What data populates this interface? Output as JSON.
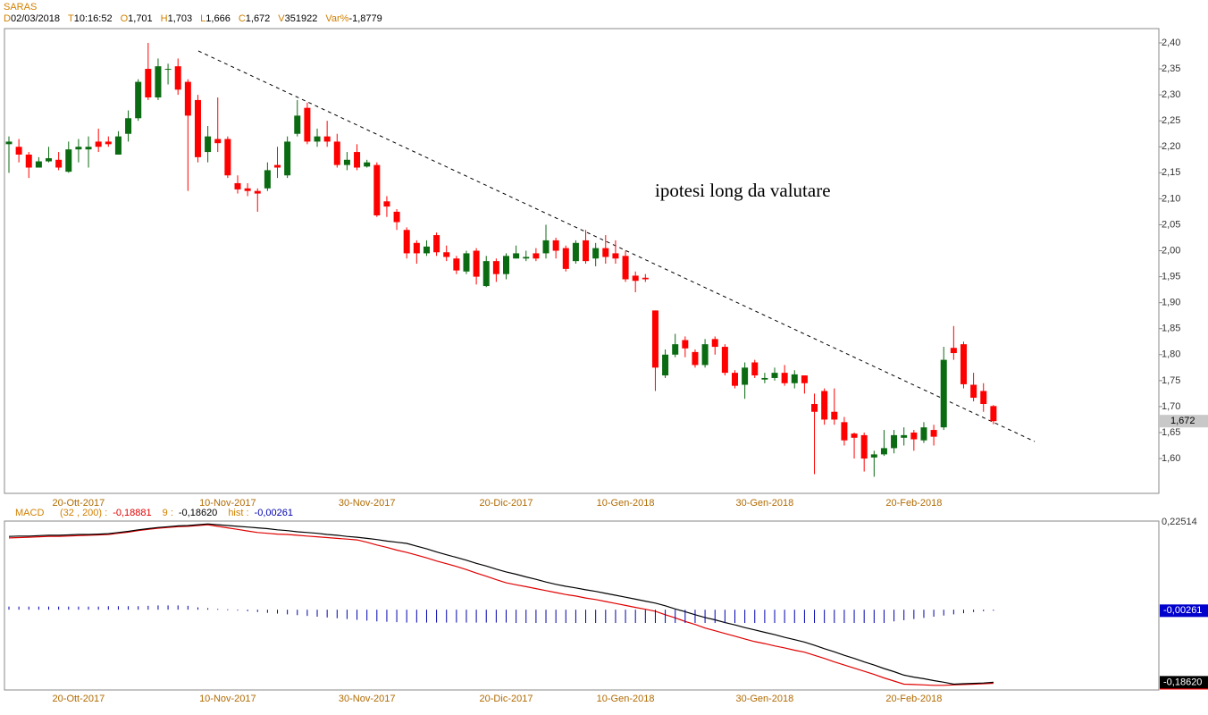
{
  "chart_data": [
    {
      "type": "candlestick",
      "title": "SARAS",
      "header": [
        {
          "label": "D",
          "value": "02/03/2018"
        },
        {
          "label": "T",
          "value": "10:16:52"
        },
        {
          "label": "O",
          "value": "1,701"
        },
        {
          "label": "H",
          "value": "1,703"
        },
        {
          "label": "L",
          "value": "1,666"
        },
        {
          "label": "C",
          "value": "1,672"
        },
        {
          "label": "V",
          "value": "351922"
        },
        {
          "label": "Var%",
          "value": "-1,8779"
        }
      ],
      "annotation": "ipotesi long da valutare",
      "categories": [
        null,
        null,
        null,
        null,
        null,
        null,
        null,
        "20-Ott-2017",
        null,
        null,
        null,
        null,
        null,
        null,
        null,
        null,
        null,
        null,
        null,
        null,
        null,
        null,
        "10-Nov-2017",
        null,
        null,
        null,
        null,
        null,
        null,
        null,
        null,
        null,
        null,
        null,
        null,
        null,
        "30-Nov-2017",
        null,
        null,
        null,
        null,
        null,
        null,
        null,
        null,
        null,
        null,
        null,
        null,
        null,
        "20-Dic-2017",
        null,
        null,
        null,
        null,
        null,
        null,
        null,
        null,
        null,
        null,
        null,
        "10-Gen-2018",
        null,
        null,
        null,
        null,
        null,
        null,
        null,
        null,
        null,
        null,
        null,
        null,
        null,
        "30-Gen-2018",
        null,
        null,
        null,
        null,
        null,
        null,
        null,
        null,
        null,
        null,
        null,
        null,
        null,
        null,
        "20-Feb-2018",
        null,
        null,
        null,
        null,
        null,
        null,
        null,
        null
      ],
      "open": [
        2.205,
        2.2,
        2.185,
        2.16,
        2.172,
        2.175,
        2.152,
        2.195,
        2.195,
        2.21,
        2.21,
        2.185,
        2.225,
        2.255,
        2.35,
        2.295,
        2.35,
        2.355,
        2.325,
        2.29,
        2.19,
        2.215,
        2.215,
        2.13,
        2.12,
        2.115,
        2.12,
        2.165,
        2.145,
        2.225,
        2.275,
        2.21,
        2.22,
        2.21,
        2.165,
        2.19,
        2.162,
        2.165,
        2.095,
        2.075,
        2.04,
        2.015,
        1.995,
        2.03,
        1.997,
        1.985,
        1.96,
        2.0,
        1.932,
        1.98,
        1.955,
        1.985,
        1.985,
        1.995,
        1.995,
        2.02,
        2.005,
        1.98,
        2.02,
        1.985,
        2.005,
        1.995,
        1.99,
        1.952,
        1.948,
        1.885,
        1.76,
        1.8,
        1.828,
        1.805,
        1.78,
        1.83,
        1.815,
        1.765,
        1.742,
        1.785,
        1.752,
        1.755,
        1.765,
        1.745,
        1.76,
        1.705,
        1.73,
        1.69,
        1.67,
        1.648,
        1.645,
        1.602,
        1.608,
        1.62,
        1.64,
        1.65,
        1.635,
        1.655,
        1.66,
        1.813,
        1.82,
        1.742,
        1.73,
        1.701
      ],
      "high": [
        2.22,
        2.215,
        2.19,
        2.18,
        2.2,
        2.19,
        2.21,
        2.215,
        2.22,
        2.235,
        2.22,
        2.23,
        2.27,
        2.33,
        2.4,
        2.37,
        2.36,
        2.37,
        2.33,
        2.3,
        2.24,
        2.295,
        2.22,
        2.145,
        2.13,
        2.12,
        2.17,
        2.2,
        2.22,
        2.29,
        2.285,
        2.235,
        2.25,
        2.225,
        2.19,
        2.205,
        2.175,
        2.17,
        2.105,
        2.08,
        2.045,
        2.02,
        2.02,
        2.035,
        2.01,
        1.99,
        2.0,
        2.005,
        1.99,
        1.985,
        1.995,
        2.01,
        2.0,
        2.005,
        2.05,
        2.025,
        2.01,
        2.02,
        2.04,
        2.015,
        2.03,
        2.02,
        2.0,
        1.96,
        1.955,
        1.885,
        1.81,
        1.84,
        1.835,
        1.81,
        1.83,
        1.835,
        1.82,
        1.77,
        1.785,
        1.79,
        1.765,
        1.775,
        1.78,
        1.77,
        1.76,
        1.725,
        1.735,
        1.735,
        1.68,
        1.65,
        1.65,
        1.615,
        1.655,
        1.655,
        1.66,
        1.655,
        1.67,
        1.665,
        1.815,
        1.855,
        1.825,
        1.765,
        1.745,
        1.703
      ],
      "low": [
        2.15,
        2.17,
        2.14,
        2.16,
        2.17,
        2.155,
        2.15,
        2.17,
        2.16,
        2.19,
        2.2,
        2.185,
        2.21,
        2.25,
        2.29,
        2.29,
        2.32,
        2.3,
        2.115,
        2.17,
        2.17,
        2.19,
        2.14,
        2.11,
        2.105,
        2.075,
        2.115,
        2.14,
        2.14,
        2.22,
        2.205,
        2.2,
        2.2,
        2.16,
        2.155,
        2.155,
        2.16,
        2.065,
        2.065,
        2.04,
        1.985,
        1.975,
        1.99,
        1.99,
        1.98,
        1.955,
        1.955,
        1.935,
        1.93,
        1.94,
        1.945,
        1.985,
        1.98,
        1.98,
        1.985,
        1.985,
        1.96,
        1.975,
        1.975,
        1.97,
        1.975,
        1.975,
        1.94,
        1.92,
        1.94,
        1.73,
        1.755,
        1.795,
        1.795,
        1.775,
        1.775,
        1.8,
        1.76,
        1.735,
        1.715,
        1.755,
        1.745,
        1.75,
        1.74,
        1.735,
        1.725,
        1.57,
        1.665,
        1.665,
        1.625,
        1.6,
        1.575,
        1.565,
        1.605,
        1.61,
        1.625,
        1.615,
        1.63,
        1.625,
        1.655,
        1.79,
        1.735,
        1.71,
        1.69,
        1.666
      ],
      "close": [
        2.21,
        2.185,
        2.16,
        2.172,
        2.178,
        2.16,
        2.195,
        2.2,
        2.2,
        2.2,
        2.205,
        2.22,
        2.255,
        2.325,
        2.295,
        2.355,
        2.35,
        2.31,
        2.26,
        2.18,
        2.22,
        2.207,
        2.145,
        2.118,
        2.115,
        2.11,
        2.155,
        2.16,
        2.21,
        2.26,
        2.21,
        2.22,
        2.21,
        2.165,
        2.175,
        2.16,
        2.17,
        2.068,
        2.085,
        2.055,
        1.995,
        1.995,
        2.008,
        1.997,
        1.988,
        1.962,
        1.995,
        1.95,
        1.98,
        1.955,
        1.99,
        1.995,
        1.988,
        1.985,
        2.02,
        2.0,
        1.965,
        2.015,
        1.98,
        2.005,
        1.988,
        1.985,
        1.945,
        1.942,
        1.945,
        1.775,
        1.8,
        1.82,
        1.812,
        1.78,
        1.82,
        1.815,
        1.765,
        1.74,
        1.775,
        1.76,
        1.755,
        1.765,
        1.745,
        1.762,
        1.745,
        1.69,
        1.675,
        1.675,
        1.635,
        1.64,
        1.6,
        1.608,
        1.62,
        1.645,
        1.645,
        1.637,
        1.66,
        1.642,
        1.79,
        1.803,
        1.743,
        1.717,
        1.705,
        1.672
      ],
      "up_color": "#0b6b12",
      "down_color": "#ff0000",
      "ylim": [
        1.533,
        2.4275
      ],
      "yticks": [
        {
          "value": 1.6,
          "label": "1,60"
        },
        {
          "value": 1.65,
          "label": "1,65"
        },
        {
          "value": 1.7,
          "label": "1,70"
        },
        {
          "value": 1.75,
          "label": "1,75"
        },
        {
          "value": 1.8,
          "label": "1,80"
        },
        {
          "value": 1.85,
          "label": "1,85"
        },
        {
          "value": 1.9,
          "label": "1,90"
        },
        {
          "value": 1.95,
          "label": "1,95"
        },
        {
          "value": 2.0,
          "label": "2,00"
        },
        {
          "value": 2.05,
          "label": "2,05"
        },
        {
          "value": 2.1,
          "label": "2,10"
        },
        {
          "value": 2.15,
          "label": "2,15"
        },
        {
          "value": 2.2,
          "label": "2,20"
        },
        {
          "value": 2.25,
          "label": "2,25"
        },
        {
          "value": 2.3,
          "label": "2,30"
        },
        {
          "value": 2.35,
          "label": "2,35"
        },
        {
          "value": 2.4,
          "label": "2,40"
        }
      ],
      "last_price": {
        "value": 1.672,
        "label": "1,672"
      }
    },
    {
      "type": "line",
      "title": "MACD",
      "ylim": [
        -0.206,
        0.22514
      ],
      "yticks": [
        {
          "value": 0.22514,
          "label": "0,22514"
        }
      ],
      "series": [
        {
          "name": "(32 , 200) :",
          "color": "#e00000",
          "last_label": "-0,18881",
          "values": [
            0.184,
            0.185,
            0.186,
            0.187,
            0.188,
            0.188,
            0.189,
            0.19,
            0.191,
            0.192,
            0.193,
            0.196,
            0.199,
            0.203,
            0.206,
            0.209,
            0.211,
            0.213,
            0.214,
            0.216,
            0.218,
            0.214,
            0.21,
            0.206,
            0.202,
            0.198,
            0.196,
            0.194,
            0.193,
            0.191,
            0.189,
            0.187,
            0.185,
            0.183,
            0.181,
            0.179,
            0.173,
            0.166,
            0.16,
            0.153,
            0.147,
            0.14,
            0.133,
            0.125,
            0.118,
            0.111,
            0.103,
            0.094,
            0.086,
            0.077,
            0.069,
            0.064,
            0.059,
            0.054,
            0.049,
            0.044,
            0.039,
            0.035,
            0.03,
            0.026,
            0.021,
            0.016,
            0.011,
            0.006,
            0.001,
            -0.004,
            -0.013,
            -0.021,
            -0.03,
            -0.038,
            -0.047,
            -0.054,
            -0.061,
            -0.068,
            -0.075,
            -0.082,
            -0.087,
            -0.093,
            -0.098,
            -0.104,
            -0.109,
            -0.117,
            -0.125,
            -0.134,
            -0.142,
            -0.15,
            -0.158,
            -0.166,
            -0.175,
            -0.183,
            -0.191,
            -0.192,
            -0.193,
            -0.194,
            -0.194,
            -0.193,
            -0.192,
            -0.191,
            -0.19,
            -0.18881
          ]
        },
        {
          "name": "9 :",
          "color": "#000000",
          "last_label": "-0,18620",
          "values": [
            0.188,
            0.189,
            0.189,
            0.19,
            0.191,
            0.191,
            0.192,
            0.193,
            0.193,
            0.194,
            0.195,
            0.198,
            0.201,
            0.205,
            0.208,
            0.211,
            0.213,
            0.215,
            0.216,
            0.218,
            0.22,
            0.218,
            0.216,
            0.214,
            0.212,
            0.21,
            0.208,
            0.205,
            0.203,
            0.2,
            0.198,
            0.196,
            0.193,
            0.191,
            0.188,
            0.186,
            0.183,
            0.18,
            0.176,
            0.173,
            0.17,
            0.163,
            0.156,
            0.148,
            0.141,
            0.134,
            0.127,
            0.119,
            0.112,
            0.104,
            0.097,
            0.091,
            0.084,
            0.078,
            0.071,
            0.065,
            0.06,
            0.056,
            0.051,
            0.047,
            0.042,
            0.037,
            0.032,
            0.027,
            0.022,
            0.017,
            0.01,
            0.002,
            -0.005,
            -0.013,
            -0.02,
            -0.026,
            -0.033,
            -0.039,
            -0.046,
            -0.052,
            -0.058,
            -0.064,
            -0.071,
            -0.077,
            -0.083,
            -0.091,
            -0.1,
            -0.108,
            -0.117,
            -0.125,
            -0.134,
            -0.142,
            -0.151,
            -0.159,
            -0.168,
            -0.173,
            -0.177,
            -0.182,
            -0.186,
            -0.191,
            -0.19,
            -0.189,
            -0.188,
            -0.1862
          ]
        },
        {
          "name": "hist :",
          "color": "#0000b0",
          "last_label": "-0,00261",
          "kind": "bar",
          "values": [
            0.008,
            0.008,
            0.008,
            0.008,
            0.008,
            0.008,
            0.008,
            0.008,
            0.008,
            0.008,
            0.009,
            0.009,
            0.009,
            0.009,
            0.01,
            0.011,
            0.011,
            0.011,
            0.01,
            0.006,
            0.004,
            0.002,
            0.001,
            -0.002,
            -0.004,
            -0.006,
            -0.008,
            -0.01,
            -0.012,
            -0.014,
            -0.016,
            -0.018,
            -0.02,
            -0.022,
            -0.024,
            -0.026,
            -0.028,
            -0.03,
            -0.031,
            -0.032,
            -0.033,
            -0.033,
            -0.033,
            -0.033,
            -0.033,
            -0.033,
            -0.033,
            -0.033,
            -0.033,
            -0.033,
            -0.033,
            -0.034,
            -0.034,
            -0.034,
            -0.034,
            -0.034,
            -0.034,
            -0.034,
            -0.034,
            -0.034,
            -0.034,
            -0.034,
            -0.034,
            -0.034,
            -0.034,
            -0.034,
            -0.034,
            -0.034,
            -0.034,
            -0.034,
            -0.034,
            -0.034,
            -0.034,
            -0.034,
            -0.034,
            -0.034,
            -0.034,
            -0.034,
            -0.034,
            -0.034,
            -0.034,
            -0.034,
            -0.034,
            -0.034,
            -0.034,
            -0.034,
            -0.034,
            -0.034,
            -0.034,
            -0.03,
            -0.027,
            -0.024,
            -0.021,
            -0.018,
            -0.015,
            -0.012,
            -0.009,
            -0.006,
            -0.004,
            -0.00261
          ]
        }
      ]
    }
  ]
}
